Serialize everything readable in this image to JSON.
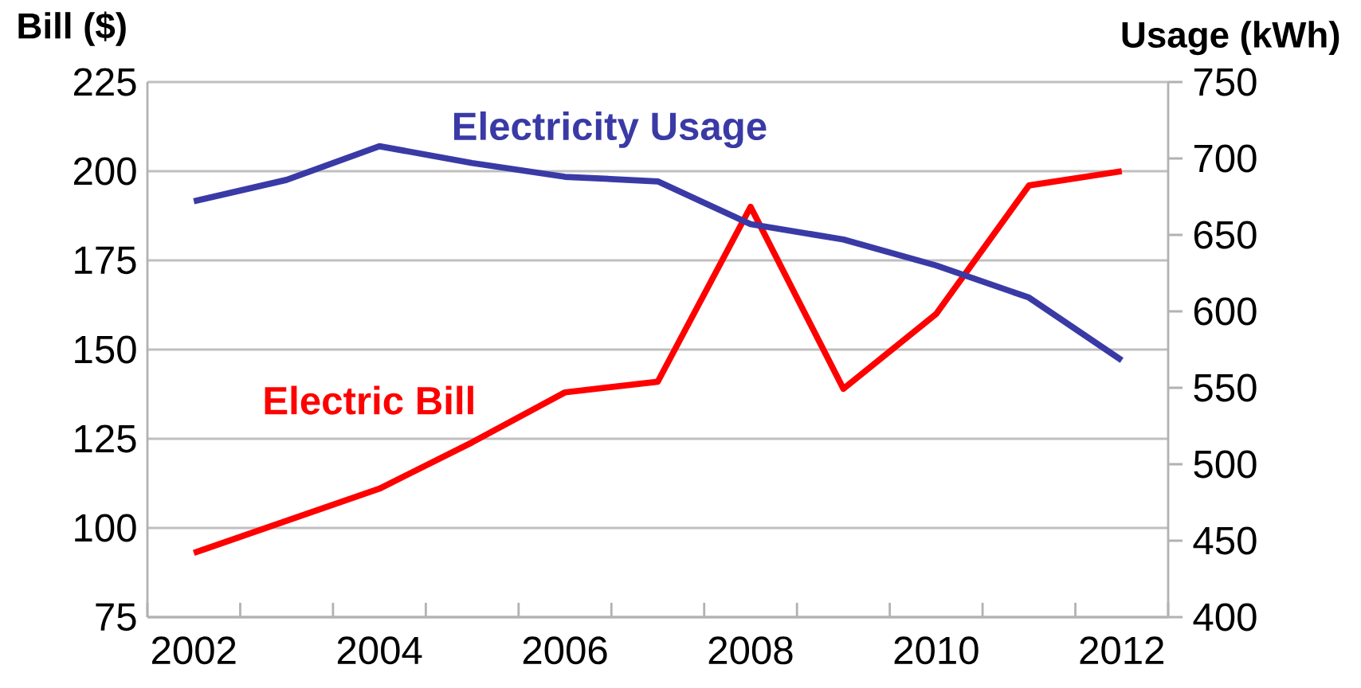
{
  "chart_data": {
    "type": "line",
    "categories": [
      "2002",
      null,
      "2004",
      null,
      "2006",
      null,
      "2008",
      null,
      "2010",
      null,
      "2012"
    ],
    "series": [
      {
        "name": "Electric Bill",
        "color": "#ff0000",
        "values": [
          93,
          102,
          111,
          124,
          138,
          141,
          190,
          139,
          160,
          196,
          200
        ]
      },
      {
        "name": "Electricity Usage",
        "color": "#3a3aa6",
        "axis": "y2",
        "values": [
          672,
          686,
          708,
          697,
          688,
          685,
          657,
          647,
          630,
          609,
          568
        ]
      }
    ],
    "ylabel": "Bill ($)",
    "y2label": "Usage (kWh)",
    "ylim": [
      75,
      225
    ],
    "yticks": [
      75,
      100,
      125,
      150,
      175,
      200,
      225
    ],
    "y2lim": [
      400,
      750
    ],
    "y2ticks": [
      400,
      450,
      500,
      550,
      600,
      650,
      700,
      750
    ],
    "grid": "y"
  }
}
